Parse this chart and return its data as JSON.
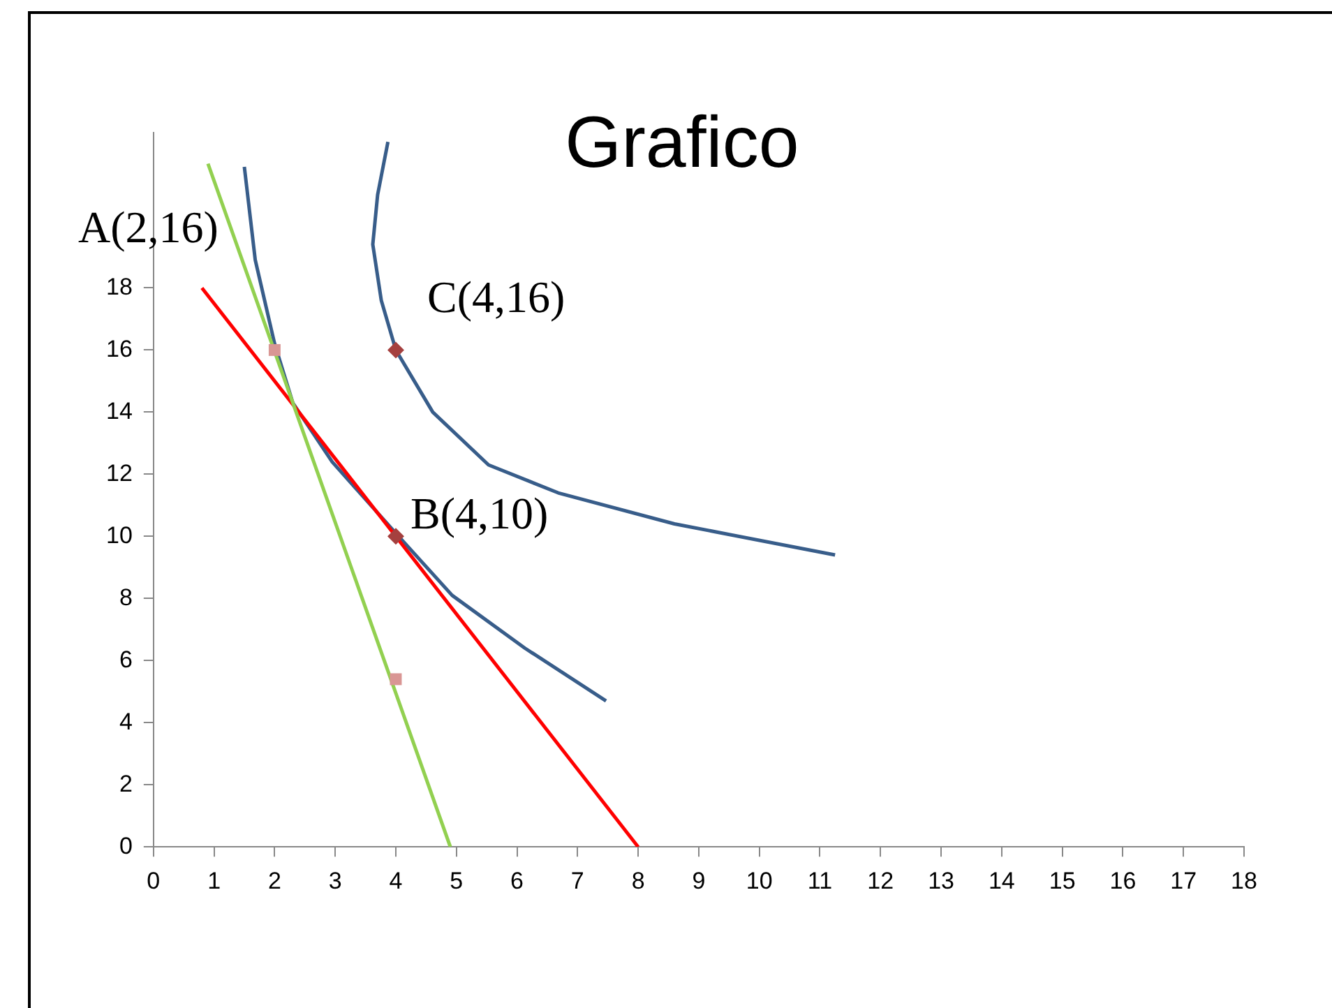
{
  "chart_data": {
    "type": "line",
    "title": "Grafico",
    "xlim": [
      0,
      18
    ],
    "xticks": [
      0,
      1,
      2,
      3,
      4,
      5,
      6,
      7,
      8,
      9,
      10,
      11,
      12,
      13,
      14,
      15,
      16,
      17,
      18
    ],
    "ylim": [
      0,
      23
    ],
    "yticks": [
      0,
      2,
      4,
      6,
      8,
      10,
      12,
      14,
      16,
      18
    ],
    "grid": false,
    "legend": false,
    "marker": "none",
    "line_style": "solid",
    "series": [
      {
        "type": "line",
        "color": "#92d050",
        "x": [
          0.9,
          4.9
        ],
        "values": [
          22,
          0
        ]
      },
      {
        "type": "line",
        "color": "#ff0000",
        "x": [
          0.8,
          8
        ],
        "values": [
          18,
          0
        ]
      },
      {
        "type": "line",
        "color": "#385d8a",
        "x": [
          1.5,
          1.68,
          2.0,
          2.3,
          2.95,
          4.0,
          4.93,
          6.13,
          7.47
        ],
        "values": [
          21.9,
          18.9,
          16.2,
          14.3,
          12.4,
          10.1,
          8.1,
          6.4,
          4.7
        ]
      },
      {
        "type": "line",
        "color": "#385d8a",
        "x": [
          3.87,
          3.7,
          3.62,
          3.76,
          4.0,
          4.61,
          5.53,
          6.68,
          8.6,
          11.25
        ],
        "values": [
          22.7,
          21,
          19.4,
          17.6,
          16,
          14,
          12.3,
          11.4,
          10.4,
          9.4
        ]
      },
      {
        "type": "scatter",
        "marker": "square",
        "color": "#d99694",
        "x": [
          2,
          4
        ],
        "values": [
          16,
          5.4
        ]
      },
      {
        "type": "scatter",
        "marker": "diamond",
        "color": "#a5403f",
        "x": [
          4,
          4
        ],
        "values": [
          16,
          10
        ]
      }
    ],
    "annotations": [
      "A(2,16)",
      "B(4,10)",
      "C(4,16)"
    ]
  }
}
